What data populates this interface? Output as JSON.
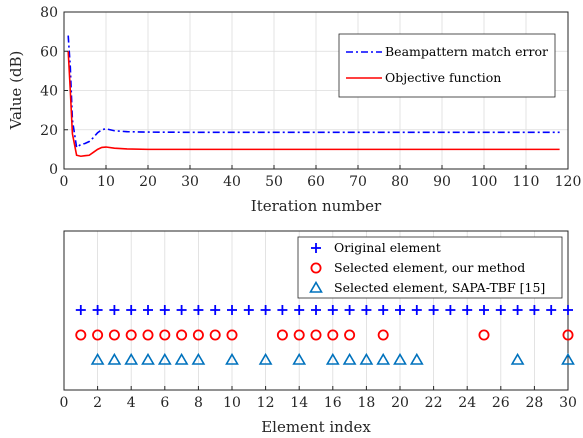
{
  "chart_data": [
    {
      "type": "line",
      "xlabel": "Iteration number",
      "ylabel": "Value (dB)",
      "xlim": [
        0,
        120
      ],
      "ylim": [
        0,
        80
      ],
      "xticks": [
        0,
        10,
        20,
        30,
        40,
        50,
        60,
        70,
        80,
        90,
        100,
        110,
        120
      ],
      "yticks": [
        0,
        20,
        40,
        60,
        80
      ],
      "grid": true,
      "legend_position": "top-right",
      "series": [
        {
          "name": "Beampattern match error",
          "color": "#0000ff",
          "style": "dash-dot",
          "x": [
            1,
            1.5,
            2,
            3,
            4,
            5,
            6,
            7,
            8,
            9,
            10,
            12,
            15,
            20,
            30,
            50,
            80,
            118
          ],
          "y": [
            68,
            52,
            25,
            11,
            12.5,
            13,
            14,
            16,
            18.5,
            20,
            20.5,
            19.5,
            19,
            18.8,
            18.7,
            18.7,
            18.7,
            18.7
          ]
        },
        {
          "name": "Objective function",
          "color": "#ff0000",
          "style": "solid",
          "x": [
            1,
            1.5,
            2,
            3,
            4,
            5,
            6,
            7,
            8,
            9,
            10,
            12,
            15,
            20,
            30,
            50,
            80,
            118
          ],
          "y": [
            60,
            40,
            18,
            7,
            6.5,
            6.8,
            7,
            8.5,
            10,
            11,
            11.2,
            10.6,
            10.2,
            10,
            10,
            10,
            10,
            10
          ]
        }
      ]
    },
    {
      "type": "scatter",
      "xlabel": "Element index",
      "xlim": [
        0,
        30
      ],
      "xticks": [
        0,
        2,
        4,
        6,
        8,
        10,
        12,
        14,
        16,
        18,
        20,
        22,
        24,
        26,
        28,
        30
      ],
      "grid": true,
      "legend_position": "top-right",
      "series": [
        {
          "name": "Original element",
          "color": "#0000ff",
          "marker": "plus",
          "x": [
            1,
            2,
            3,
            4,
            5,
            6,
            7,
            8,
            9,
            10,
            11,
            12,
            13,
            14,
            15,
            16,
            17,
            18,
            19,
            20,
            21,
            22,
            23,
            24,
            25,
            26,
            27,
            28,
            29,
            30
          ]
        },
        {
          "name": "Selected element, our method",
          "color": "#ff0000",
          "marker": "circle",
          "x": [
            1,
            2,
            3,
            4,
            5,
            6,
            7,
            8,
            9,
            10,
            13,
            14,
            15,
            16,
            17,
            19,
            25,
            30
          ]
        },
        {
          "name": "Selected element, SAPA-TBF [15]",
          "color": "#0072bd",
          "marker": "triangle",
          "x": [
            2,
            3,
            4,
            5,
            6,
            7,
            8,
            10,
            12,
            14,
            16,
            17,
            18,
            19,
            20,
            21,
            27,
            30
          ]
        }
      ]
    }
  ]
}
